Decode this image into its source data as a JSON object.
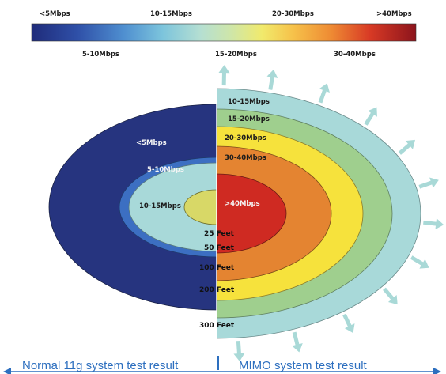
{
  "legend": {
    "top_labels": [
      "<5Mbps",
      "10-15Mbps",
      "20-30Mbps",
      ">40Mbps"
    ],
    "bottom_labels": [
      "5-10Mbps",
      "15-20Mbps",
      "30-40Mbps"
    ]
  },
  "left": {
    "ring_labels": [
      "<5Mbps",
      "5-10Mbps",
      "10-15Mbps"
    ]
  },
  "right": {
    "ring_labels": [
      "10-15Mbps",
      "15-20Mbps",
      "20-30Mbps",
      "30-40Mbps",
      ">40Mbps"
    ]
  },
  "distances": [
    "25 Feet",
    "50 Feet",
    "100 Feet",
    "200 Feet",
    "300 Feet"
  ],
  "footer": {
    "left": "Normal 11g system test result",
    "right": "MIMO system test result"
  },
  "colors": {
    "lt5": "#26347f",
    "r5_10": "#3c6fc2",
    "r10_15": "#a8d9d9",
    "center_left": "#d8d867",
    "r15_20": "#9fcf8e",
    "r20_30": "#f6e23c",
    "r30_40": "#e48431",
    "gt40": "#cf2a22",
    "arrow": "#a9d9d7",
    "footer": "#2d6fbf"
  }
}
